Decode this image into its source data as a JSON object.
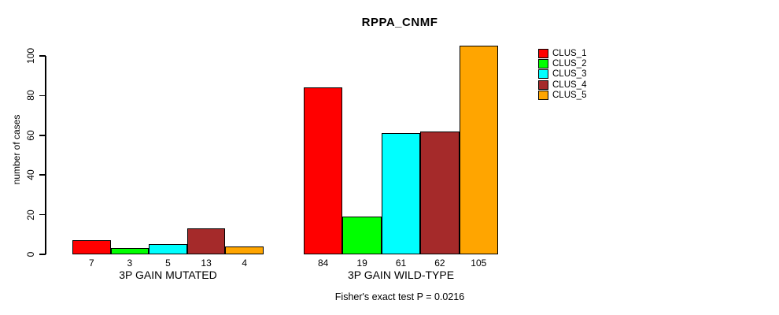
{
  "chart_data": {
    "type": "bar",
    "title": "RPPA_CNMF",
    "ylabel": "number of cases",
    "ylim": [
      0,
      100
    ],
    "yticks": [
      0,
      20,
      40,
      60,
      80,
      100
    ],
    "grid": false,
    "legend_position": "right",
    "bar_border_color": "#000000",
    "groups": [
      {
        "label": "3P GAIN MUTATED",
        "values": [
          7,
          3,
          5,
          13,
          4
        ]
      },
      {
        "label": "3P GAIN WILD-TYPE",
        "values": [
          84,
          19,
          61,
          62,
          105
        ]
      }
    ],
    "series": [
      {
        "name": "CLUS_1",
        "color": "#FF0000"
      },
      {
        "name": "CLUS_2",
        "color": "#00FF00"
      },
      {
        "name": "CLUS_3",
        "color": "#00FFFF"
      },
      {
        "name": "CLUS_4",
        "color": "#A52A2A"
      },
      {
        "name": "CLUS_5",
        "color": "#FFA500"
      }
    ],
    "annotation": "Fisher's exact test P = 0.0216"
  }
}
